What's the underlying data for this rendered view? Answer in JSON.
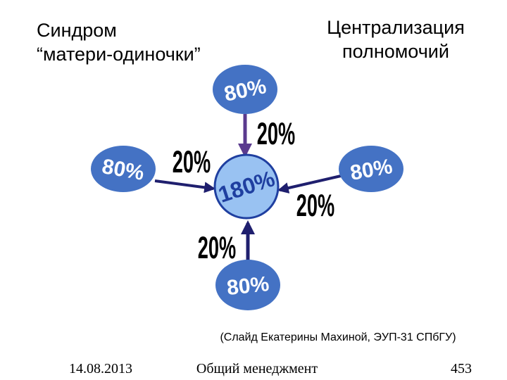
{
  "title": {
    "lines": [
      "Синдром",
      "“матери-одиночки”"
    ]
  },
  "heading": {
    "lines": [
      "Централизация",
      "полномочий"
    ]
  },
  "center": {
    "label": "180%"
  },
  "nodes": [
    {
      "label": "80%"
    },
    {
      "label": "80%"
    },
    {
      "label": "80%"
    },
    {
      "label": "80%"
    }
  ],
  "arrows": [
    {
      "label": "20%"
    },
    {
      "label": "20%"
    },
    {
      "label": "20%"
    },
    {
      "label": "20%"
    }
  ],
  "caption": "(Слайд Екатерины Махиной, ЭУП-31 СПбГУ)",
  "footer": {
    "date": "14.08.2013",
    "course": "Общий менеджмент",
    "page": "453"
  }
}
